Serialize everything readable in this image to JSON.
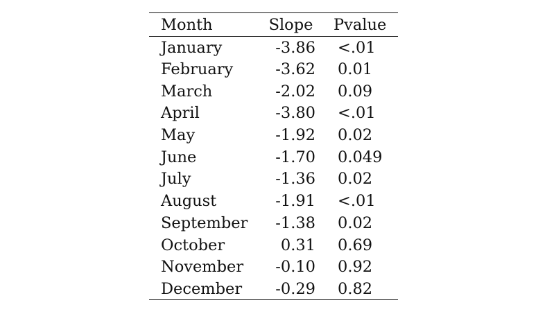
{
  "table": {
    "headers": {
      "month": "Month",
      "slope": "Slope",
      "pvalue": "Pvalue"
    },
    "rows": [
      {
        "month": "January",
        "slope": "-3.86",
        "pvalue": "<.01"
      },
      {
        "month": "February",
        "slope": "-3.62",
        "pvalue": "0.01"
      },
      {
        "month": "March",
        "slope": "-2.02",
        "pvalue": "0.09"
      },
      {
        "month": "April",
        "slope": "-3.80",
        "pvalue": "<.01"
      },
      {
        "month": "May",
        "slope": "-1.92",
        "pvalue": "0.02"
      },
      {
        "month": "June",
        "slope": "-1.70",
        "pvalue": "0.049"
      },
      {
        "month": "July",
        "slope": "-1.36",
        "pvalue": "0.02"
      },
      {
        "month": "August",
        "slope": "-1.91",
        "pvalue": "<.01"
      },
      {
        "month": "September",
        "slope": "-1.38",
        "pvalue": "0.02"
      },
      {
        "month": "October",
        "slope": "0.31",
        "pvalue": "0.69"
      },
      {
        "month": "November",
        "slope": "-0.10",
        "pvalue": "0.92"
      },
      {
        "month": "December",
        "slope": "-0.29",
        "pvalue": "0.82"
      }
    ]
  }
}
